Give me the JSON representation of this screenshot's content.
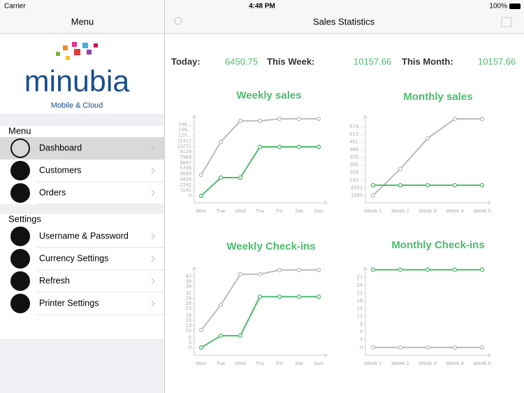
{
  "status_bar": {
    "carrier": "Carrier",
    "time": "4:48 PM",
    "battery": "100%"
  },
  "sidebar": {
    "title": "Menu",
    "logo": {
      "name": "minubia",
      "tagline": "Mobile & Cloud"
    },
    "sections": [
      {
        "title": "Menu",
        "items": [
          "Dashboard",
          "Customers",
          "Orders"
        ]
      },
      {
        "title": "Settings",
        "items": [
          "Username & Password",
          "Currency Settings",
          "Refresh",
          "Printer Settings"
        ]
      }
    ]
  },
  "main": {
    "title": "Sales Statistics",
    "stats": [
      {
        "label": "Today:",
        "value": "6450.75"
      },
      {
        "label": "This Week:",
        "value": "10157.66"
      },
      {
        "label": "This Month:",
        "value": "10157.66"
      }
    ]
  },
  "chart_data": [
    {
      "type": "line",
      "title": "Weekly sales",
      "categories": [
        "Mon",
        "Tue",
        "Wed",
        "Thu",
        "Fri",
        "Sat",
        "Sun"
      ],
      "ylim": [
        -1450,
        16700
      ],
      "yticks": [
        0,
        1141,
        2282,
        3424,
        4565,
        5706,
        6847,
        7988,
        9129,
        10271,
        11412,
        {
          "value": 12553,
          "label": "125..."
        },
        {
          "value": 13694,
          "label": "136..."
        },
        {
          "value": 14835,
          "label": "148..."
        }
      ],
      "series": [
        {
          "color": "#bbbbbb",
          "values": [
            4360,
            11190,
            15550,
            15550,
            15990,
            15990,
            15990
          ]
        },
        {
          "color": "#4cbb6e",
          "values": [
            0,
            3780,
            3780,
            10157.66,
            10157.66,
            10157.66,
            10157.66
          ]
        }
      ]
    },
    {
      "type": "line",
      "title": "Monthly sales",
      "categories": [
        "Week 1",
        "Week 2",
        "Week 3",
        "Week 4",
        "Week 5"
      ],
      "ylim": [
        -4000,
        66500
      ],
      "yticks": [
        1995,
        8161,
        {
          "value": 14327,
          "label": "143..."
        },
        {
          "value": 20493,
          "label": "204..."
        },
        {
          "value": 26659,
          "label": "266..."
        },
        {
          "value": 32825,
          "label": "328..."
        },
        {
          "value": 38991,
          "label": "389..."
        },
        {
          "value": 45157,
          "label": "451..."
        },
        {
          "value": 51323,
          "label": "513..."
        },
        {
          "value": 57489,
          "label": "574..."
        }
      ],
      "series": [
        {
          "color": "#bbbbbb",
          "values": [
            1995,
            23300,
            47940,
            63650,
            63650
          ]
        },
        {
          "color": "#4cbb6e",
          "values": [
            10157.66,
            10157.66,
            10157.66,
            10157.66,
            10157.66
          ]
        }
      ]
    },
    {
      "type": "line",
      "title": "Weekly Check-ins",
      "categories": [
        "Mon",
        "Tue",
        "Wed",
        "Thu",
        "Fri",
        "Sat",
        "Sun"
      ],
      "ylim": [
        -4.5,
        47.4
      ],
      "yticks": [
        0,
        3,
        6,
        10,
        13,
        16,
        19,
        23,
        26,
        29,
        32,
        36,
        39,
        42
      ],
      "series": [
        {
          "color": "#bbbbbb",
          "values": [
            10.3,
            25.1,
            43.2,
            43.2,
            45.7,
            45.7,
            45.7
          ]
        },
        {
          "color": "#4cbb6e",
          "values": [
            0,
            7,
            7,
            30,
            30,
            30,
            30
          ]
        }
      ]
    },
    {
      "type": "line",
      "title": "Monthly Check-ins",
      "categories": [
        "Week 1",
        "Week 2",
        "Week 3",
        "Week 4",
        "Week 5"
      ],
      "ylim": [
        -3,
        31
      ],
      "yticks": [
        0,
        3,
        6,
        9,
        12,
        15,
        18,
        21,
        24,
        27
      ],
      "series": [
        {
          "color": "#bbbbbb",
          "values": [
            0,
            0,
            0,
            0,
            0
          ]
        },
        {
          "color": "#4cbb6e",
          "values": [
            30,
            30,
            30,
            30,
            30
          ]
        }
      ]
    }
  ]
}
